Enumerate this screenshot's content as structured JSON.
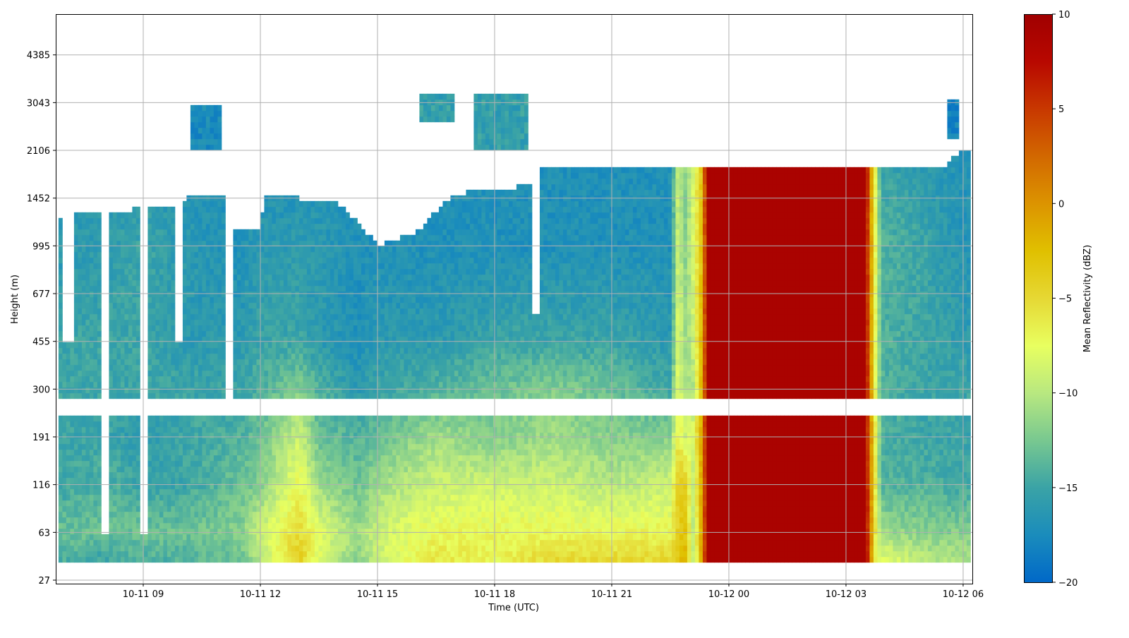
{
  "chart_data": {
    "type": "heatmap",
    "title": "",
    "xlabel": "Time (UTC)",
    "ylabel": "Height (m)",
    "colorbar_label": "Mean Reflectivity (dBZ)",
    "clim": [
      -20,
      10
    ],
    "colorbar_ticks": [
      "10",
      "5",
      "0",
      "−5",
      "−10",
      "−15",
      "−20"
    ],
    "colorbar_tick_values": [
      10,
      5,
      0,
      -5,
      -10,
      -15,
      -20
    ],
    "x_range_hours": [
      6.76,
      30.25
    ],
    "x_ticks": [
      {
        "label": "10-11 09",
        "hour": 9
      },
      {
        "label": "10-11 12",
        "hour": 12
      },
      {
        "label": "10-11 15",
        "hour": 15
      },
      {
        "label": "10-11 18",
        "hour": 18
      },
      {
        "label": "10-11 21",
        "hour": 21
      },
      {
        "label": "10-12 00",
        "hour": 24
      },
      {
        "label": "10-12 03",
        "hour": 27
      },
      {
        "label": "10-12 06",
        "hour": 30
      }
    ],
    "y_ticks": [
      "27",
      "63",
      "116",
      "191",
      "300",
      "455",
      "677",
      "995",
      "1452",
      "2106",
      "3043",
      "4385"
    ],
    "y_tick_values": [
      27,
      63,
      116,
      191,
      300,
      455,
      677,
      995,
      1452,
      2106,
      3043,
      4385
    ],
    "grid": true,
    "colormap": [
      [
        -20,
        "#0068c8"
      ],
      [
        -17.5,
        "#1a8cbc"
      ],
      [
        -15,
        "#3aa3a6"
      ],
      [
        -12.5,
        "#78c890"
      ],
      [
        -10,
        "#b8e880"
      ],
      [
        -7.5,
        "#e8ff60"
      ],
      [
        -5,
        "#e6d834"
      ],
      [
        -2.5,
        "#e0c000"
      ],
      [
        0,
        "#dc9400"
      ],
      [
        2.5,
        "#d26800"
      ],
      [
        5,
        "#c83800"
      ],
      [
        7.5,
        "#b80800"
      ],
      [
        10,
        "#a00000"
      ]
    ],
    "height_levels_m": [
      40,
      63,
      116,
      191,
      300,
      455,
      995,
      1800
    ],
    "profiles": [
      {
        "t": 6.8,
        "dbz": [
          -14,
          -13,
          -15,
          -15,
          -15,
          -15,
          -16,
          -16
        ]
      },
      {
        "t": 8.0,
        "dbz": [
          -15,
          -13,
          -14,
          -15,
          -15,
          -15,
          -16,
          -16
        ]
      },
      {
        "t": 9.0,
        "dbz": [
          -14,
          -13,
          -15,
          -16,
          -15,
          -15,
          -15,
          -16
        ]
      },
      {
        "t": 10.0,
        "dbz": [
          -14,
          -13,
          -15,
          -15,
          -15,
          -16,
          -16,
          -17
        ]
      },
      {
        "t": 11.5,
        "dbz": [
          -13,
          -12,
          -13,
          -14,
          -15,
          -16,
          -17,
          -17
        ]
      },
      {
        "t": 12.0,
        "dbz": [
          -10,
          -9,
          -12,
          -13,
          -14,
          -15,
          -16,
          -17
        ]
      },
      {
        "t": 13.0,
        "dbz": [
          -4,
          -5,
          -7,
          -9,
          -12,
          -15,
          -16,
          -17
        ]
      },
      {
        "t": 13.5,
        "dbz": [
          -8,
          -8,
          -11,
          -13,
          -14,
          -16,
          -16,
          -17
        ]
      },
      {
        "t": 14.5,
        "dbz": [
          -12,
          -11,
          -13,
          -14,
          -16,
          -17,
          -17,
          -17
        ]
      },
      {
        "t": 15.0,
        "dbz": [
          -9,
          -9,
          -11,
          -13,
          -15,
          -16,
          -17,
          -17
        ]
      },
      {
        "t": 16.5,
        "dbz": [
          -6,
          -7,
          -9,
          -11,
          -14,
          -16,
          -17,
          -17
        ]
      },
      {
        "t": 18.0,
        "dbz": [
          -7,
          -7,
          -9,
          -12,
          -13,
          -15,
          -17,
          -17
        ]
      },
      {
        "t": 19.5,
        "dbz": [
          -5,
          -7,
          -9,
          -11,
          -12,
          -15,
          -17,
          -17
        ]
      },
      {
        "t": 21.0,
        "dbz": [
          -5,
          -7,
          -10,
          -12,
          -13,
          -15,
          -17,
          -17
        ]
      },
      {
        "t": 22.5,
        "dbz": [
          -5,
          -7,
          -9,
          -12,
          -15,
          -16,
          -17,
          -17
        ]
      },
      {
        "t": 22.7,
        "dbz": [
          -3,
          -4,
          -4,
          -6,
          -8,
          -8,
          -9,
          -9
        ]
      },
      {
        "t": 22.9,
        "dbz": [
          -2,
          -3,
          -4,
          -9,
          -11,
          -11,
          -12,
          -12
        ]
      },
      {
        "t": 23.1,
        "dbz": [
          -10,
          -10,
          -10,
          -8,
          -10,
          -9,
          -8,
          -8
        ]
      },
      {
        "t": 23.3,
        "dbz": [
          -1,
          -1,
          -1,
          -1,
          -2,
          -2,
          -3,
          -3
        ]
      },
      {
        "t": 23.45,
        "dbz": [
          9,
          9,
          9,
          9,
          9,
          9,
          9,
          9
        ]
      },
      {
        "t": 27.5,
        "dbz": [
          9,
          9,
          9,
          9,
          9,
          9,
          9,
          9
        ]
      },
      {
        "t": 27.6,
        "dbz": [
          3,
          3,
          3,
          2,
          2,
          2,
          2,
          2
        ]
      },
      {
        "t": 27.75,
        "dbz": [
          -6,
          -6,
          -6,
          -6,
          -7,
          -7,
          -7,
          -7
        ]
      },
      {
        "t": 27.9,
        "dbz": [
          -8,
          -11,
          -14,
          -14,
          -14,
          -14,
          -14,
          -15
        ]
      },
      {
        "t": 29.0,
        "dbz": [
          -10,
          -12,
          -14,
          -15,
          -15,
          -15,
          -15,
          -16
        ]
      },
      {
        "t": 30.3,
        "dbz": [
          -11,
          -12,
          -15,
          -15,
          -15,
          -16,
          -17,
          -17
        ]
      }
    ],
    "data_bottom_m": 37,
    "blank_band_m": [
      235,
      270
    ],
    "data_top_m": [
      [
        6.8,
        1250
      ],
      [
        7.3,
        1300
      ],
      [
        10.0,
        1350
      ],
      [
        10.1,
        1500
      ],
      [
        11.2,
        1500
      ],
      [
        11.3,
        1150
      ],
      [
        12.0,
        1150
      ],
      [
        12.1,
        1500
      ],
      [
        14.0,
        1400
      ],
      [
        15.0,
        1000
      ],
      [
        16.0,
        1100
      ],
      [
        17.0,
        1500
      ],
      [
        18.9,
        1600
      ],
      [
        19.2,
        1850
      ],
      [
        29.5,
        1850
      ],
      [
        30.0,
        2150
      ],
      [
        30.3,
        2150
      ]
    ],
    "data_time_range_hours": [
      6.83,
      30.16
    ],
    "gaps": [
      {
        "t": [
          6.96,
          7.23
        ],
        "h": [
          455,
          9999
        ]
      },
      {
        "t": [
          7.9,
          8.15
        ],
        "h": [
          63,
          9999
        ]
      },
      {
        "t": [
          8.89,
          9.16
        ],
        "h": [
          63,
          9999
        ]
      },
      {
        "t": [
          9.78,
          10.05
        ],
        "h": [
          460,
          9999
        ]
      },
      {
        "t": [
          11.08,
          11.26
        ],
        "h": [
          270,
          9999
        ]
      },
      {
        "t": [
          18.95,
          19.15
        ],
        "h": [
          560,
          9999
        ]
      }
    ],
    "upper_clouds": [
      {
        "t": [
          10.2,
          11.0
        ],
        "h": [
          2100,
          3000
        ],
        "dbz": -17.5
      },
      {
        "t": [
          16.1,
          17.0
        ],
        "h": [
          2600,
          3300
        ],
        "dbz": -15.5
      },
      {
        "t": [
          17.45,
          18.9
        ],
        "h": [
          2100,
          3200
        ],
        "dbz": -15.5
      },
      {
        "t": [
          29.6,
          29.9
        ],
        "h": [
          2300,
          3100
        ],
        "dbz": -18
      }
    ]
  }
}
